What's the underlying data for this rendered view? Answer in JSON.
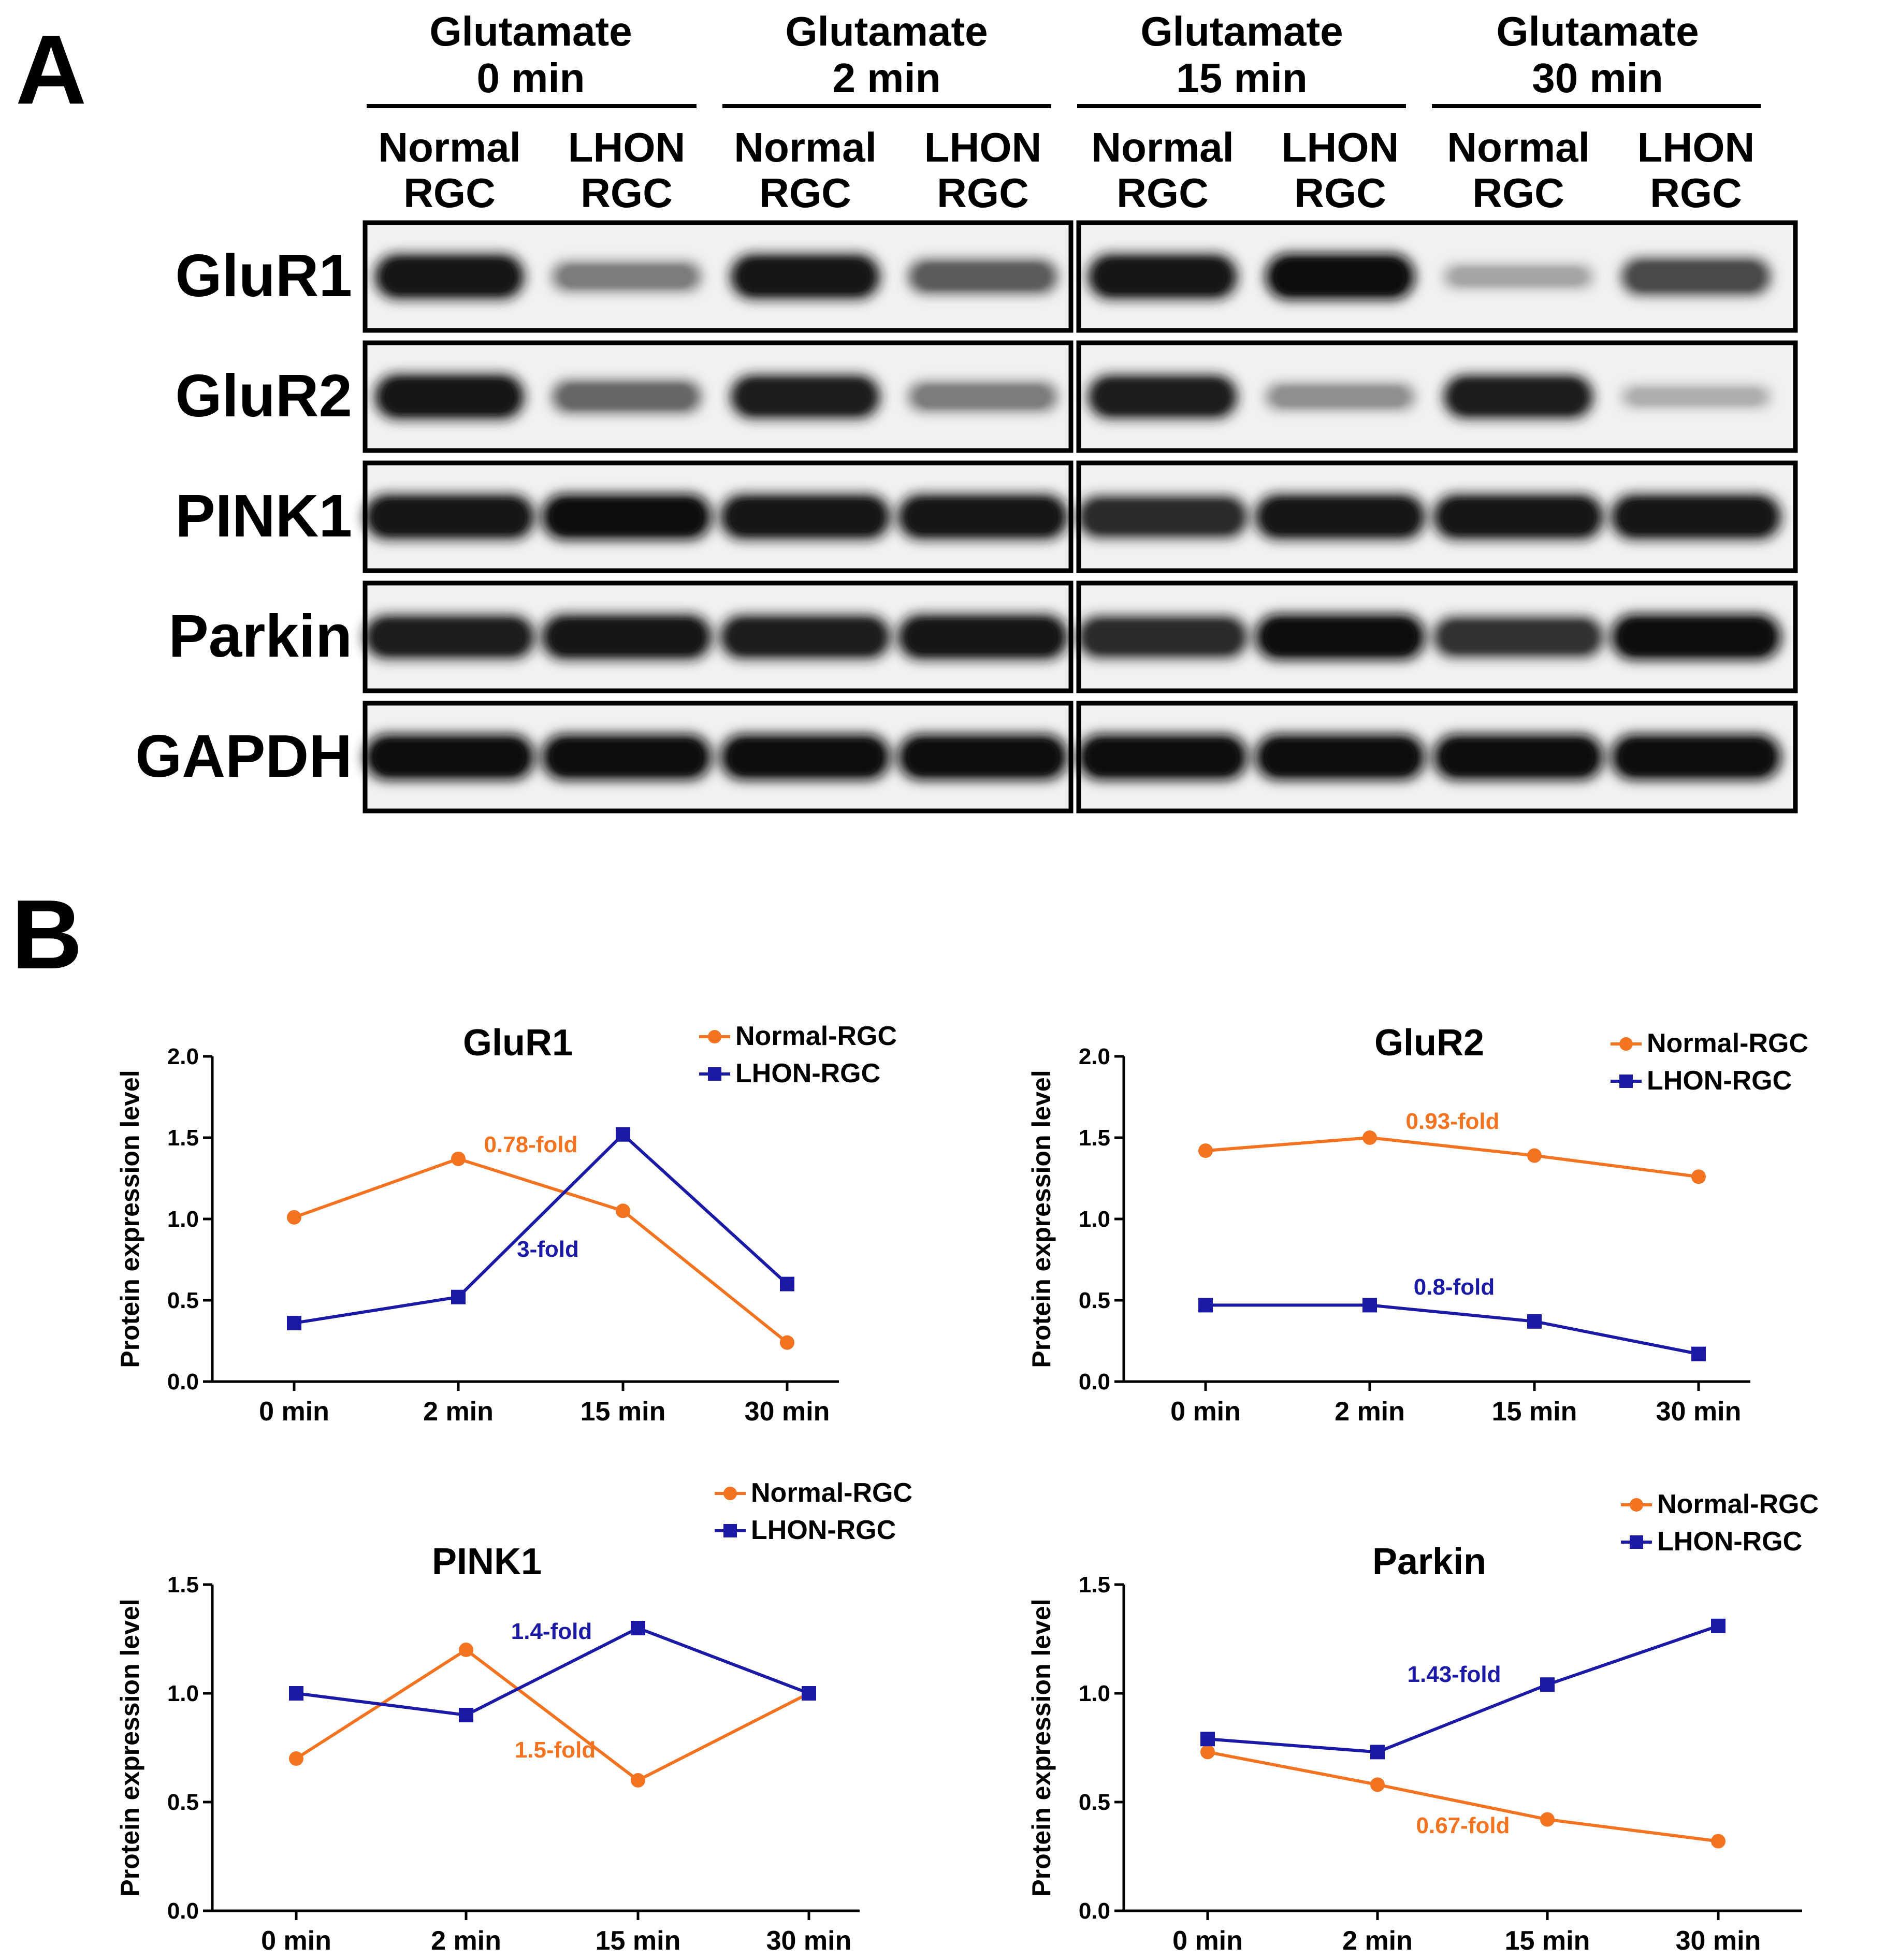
{
  "panel_a": {
    "label": "A",
    "groups": [
      {
        "line1": "Glutamate",
        "line2": "0 min"
      },
      {
        "line1": "Glutamate",
        "line2": "2 min"
      },
      {
        "line1": "Glutamate",
        "line2": "15 min"
      },
      {
        "line1": "Glutamate",
        "line2": "30 min"
      }
    ],
    "lanes": [
      {
        "line1": "Normal",
        "line2": "RGC"
      },
      {
        "line1": "LHON",
        "line2": "RGC"
      },
      {
        "line1": "Normal",
        "line2": "RGC"
      },
      {
        "line1": "LHON",
        "line2": "RGC"
      },
      {
        "line1": "Normal",
        "line2": "RGC"
      },
      {
        "line1": "LHON",
        "line2": "RGC"
      },
      {
        "line1": "Normal",
        "line2": "RGC"
      },
      {
        "line1": "LHON",
        "line2": "RGC"
      }
    ],
    "blots": [
      {
        "protein": "GluR1",
        "intensity": [
          0.95,
          0.45,
          0.95,
          0.6,
          0.95,
          1.0,
          0.25,
          0.7
        ]
      },
      {
        "protein": "GluR2",
        "intensity": [
          0.95,
          0.55,
          0.9,
          0.45,
          0.9,
          0.35,
          0.9,
          0.2
        ]
      },
      {
        "protein": "PINK1",
        "intensity": [
          0.95,
          0.98,
          0.95,
          0.95,
          0.85,
          0.95,
          0.95,
          0.95
        ]
      },
      {
        "protein": "Parkin",
        "intensity": [
          0.9,
          0.95,
          0.9,
          0.95,
          0.85,
          0.98,
          0.8,
          0.98
        ]
      },
      {
        "protein": "GAPDH",
        "intensity": [
          0.98,
          0.98,
          0.98,
          0.98,
          0.98,
          0.98,
          0.98,
          0.98
        ]
      }
    ]
  },
  "panel_b": {
    "label": "B"
  },
  "chart_data": [
    {
      "type": "line",
      "title": "GluR1",
      "ylabel": "Protein expression level",
      "categories": [
        "0 min",
        "2 min",
        "15 min",
        "30 min"
      ],
      "ylim": [
        0,
        2.0
      ],
      "yticks": [
        "0.0",
        "0.5",
        "1.0",
        "1.5",
        "2.0"
      ],
      "legend": "top-right",
      "series": [
        {
          "name": "Normal-RGC",
          "color": "#f37321",
          "marker": "circle",
          "values": [
            1.01,
            1.37,
            1.05,
            0.24
          ]
        },
        {
          "name": "LHON-RGC",
          "color": "#1a1aa6",
          "marker": "square",
          "values": [
            0.36,
            0.52,
            1.52,
            0.6
          ]
        }
      ],
      "annotations": [
        {
          "text": "0.78-fold",
          "color": "#f37321"
        },
        {
          "text": "3-fold",
          "color": "#1a1aa6"
        }
      ]
    },
    {
      "type": "line",
      "title": "GluR2",
      "ylabel": "Protein expression level",
      "categories": [
        "0 min",
        "2 min",
        "15 min",
        "30 min"
      ],
      "ylim": [
        0,
        2.0
      ],
      "yticks": [
        "0.0",
        "0.5",
        "1.0",
        "1.5",
        "2.0"
      ],
      "legend": "top-right",
      "series": [
        {
          "name": "Normal-RGC",
          "color": "#f37321",
          "marker": "circle",
          "values": [
            1.42,
            1.5,
            1.39,
            1.26
          ]
        },
        {
          "name": "LHON-RGC",
          "color": "#1a1aa6",
          "marker": "square",
          "values": [
            0.47,
            0.47,
            0.37,
            0.17
          ]
        }
      ],
      "annotations": [
        {
          "text": "0.93-fold",
          "color": "#f37321"
        },
        {
          "text": "0.8-fold",
          "color": "#1a1aa6"
        }
      ]
    },
    {
      "type": "line",
      "title": "PINK1",
      "ylabel": "Protein expression level",
      "categories": [
        "0 min",
        "2 min",
        "15 min",
        "30 min"
      ],
      "ylim": [
        0,
        1.5
      ],
      "yticks": [
        "0.0",
        "0.5",
        "1.0",
        "1.5"
      ],
      "legend": "top-right",
      "series": [
        {
          "name": "Normal-RGC",
          "color": "#f37321",
          "marker": "circle",
          "values": [
            0.7,
            1.2,
            0.6,
            1.0
          ]
        },
        {
          "name": "LHON-RGC",
          "color": "#1a1aa6",
          "marker": "square",
          "values": [
            1.0,
            0.9,
            1.3,
            1.0
          ]
        }
      ],
      "annotations": [
        {
          "text": "1.4-fold",
          "color": "#1a1aa6"
        },
        {
          "text": "1.5-fold",
          "color": "#f37321"
        }
      ]
    },
    {
      "type": "line",
      "title": "Parkin",
      "ylabel": "Protein expression level",
      "categories": [
        "0 min",
        "2 min",
        "15 min",
        "30 min"
      ],
      "ylim": [
        0,
        1.5
      ],
      "yticks": [
        "0.0",
        "0.5",
        "1.0",
        "1.5"
      ],
      "legend": "top-right",
      "series": [
        {
          "name": "Normal-RGC",
          "color": "#f37321",
          "marker": "circle",
          "values": [
            0.73,
            0.58,
            0.42,
            0.32
          ]
        },
        {
          "name": "LHON-RGC",
          "color": "#1a1aa6",
          "marker": "square",
          "values": [
            0.79,
            0.73,
            1.04,
            1.31
          ]
        }
      ],
      "annotations": [
        {
          "text": "1.43-fold",
          "color": "#1a1aa6"
        },
        {
          "text": "0.67-fold",
          "color": "#f37321"
        }
      ]
    }
  ]
}
